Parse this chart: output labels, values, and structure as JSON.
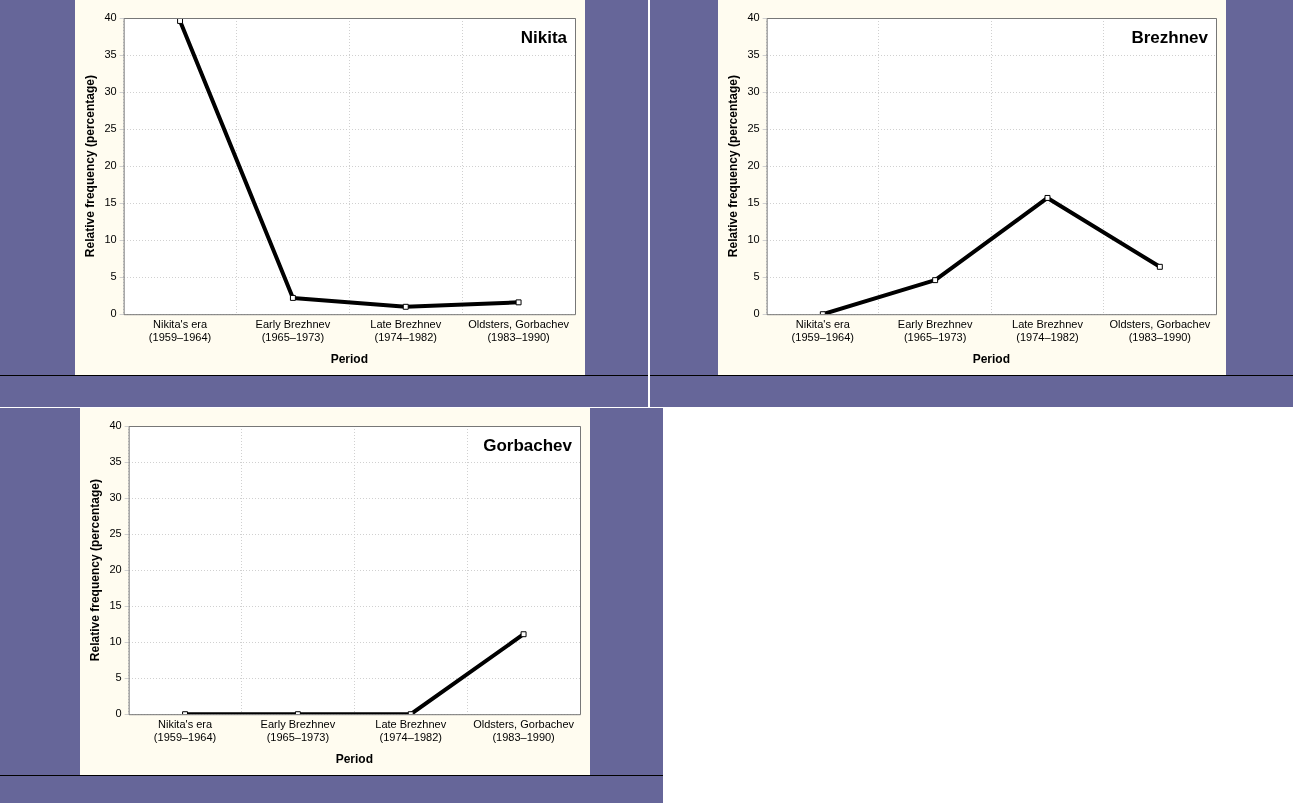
{
  "chart_data": [
    {
      "type": "line",
      "title": "Nikita",
      "xlabel": "Period",
      "ylabel": "Relative frequency (percentage)",
      "categories": [
        "Nikita's era\n(1959–1964)",
        "Early Brezhnev\n(1965–1973)",
        "Late Brezhnev\n(1974–1982)",
        "Oldsters, Gorbachev\n(1983–1990)"
      ],
      "series": [
        {
          "color": "#000000",
          "values": [
            39.6,
            2.2,
            1.0,
            1.6
          ]
        }
      ],
      "ylim": [
        0,
        40
      ],
      "yticks": [
        0,
        5,
        10,
        15,
        20,
        25,
        30,
        35,
        40
      ],
      "grid": true,
      "marker": "square",
      "line_style": "solid",
      "legend": false
    },
    {
      "type": "line",
      "title": "Brezhnev",
      "xlabel": "Period",
      "ylabel": "Relative frequency (percentage)",
      "categories": [
        "Nikita's era\n(1959–1964)",
        "Early Brezhnev\n(1965–1973)",
        "Late Brezhnev\n(1974–1982)",
        "Oldsters, Gorbachev\n(1983–1990)"
      ],
      "series": [
        {
          "color": "#000000",
          "values": [
            0,
            4.6,
            15.7,
            6.4
          ]
        }
      ],
      "ylim": [
        0,
        40
      ],
      "yticks": [
        0,
        5,
        10,
        15,
        20,
        25,
        30,
        35,
        40
      ],
      "grid": true,
      "marker": "square",
      "line_style": "solid",
      "legend": false
    },
    {
      "type": "line",
      "title": "Gorbachev",
      "xlabel": "Period",
      "ylabel": "Relative frequency (percentage)",
      "categories": [
        "Nikita's era\n(1959–1964)",
        "Early Brezhnev\n(1965–1973)",
        "Late Brezhnev\n(1974–1982)",
        "Oldsters, Gorbachev\n(1983–1990)"
      ],
      "series": [
        {
          "color": "#000000",
          "values": [
            0,
            0,
            0,
            11.1
          ]
        }
      ],
      "ylim": [
        0,
        40
      ],
      "yticks": [
        0,
        5,
        10,
        15,
        20,
        25,
        30,
        35,
        40
      ],
      "grid": true,
      "marker": "square",
      "line_style": "solid",
      "legend": false
    }
  ]
}
